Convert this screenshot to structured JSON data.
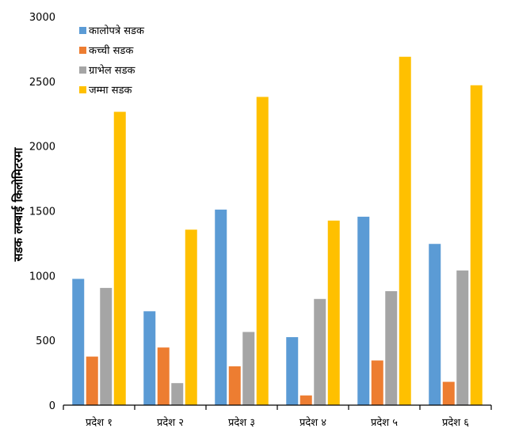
{
  "chart_data": {
    "type": "bar",
    "categories": [
      "प्रदेश १",
      "प्रदेश २",
      "प्रदेश ३",
      "प्रदेश ४",
      "प्रदेश ५",
      "प्रदेश ६"
    ],
    "series": [
      {
        "name": "कालोपत्रे सडक",
        "color": "#5B9BD5",
        "values": [
          975,
          725,
          1510,
          525,
          1455,
          1245
        ]
      },
      {
        "name": "कच्ची सडक",
        "color": "#ED7D31",
        "values": [
          375,
          445,
          300,
          75,
          345,
          180
        ]
      },
      {
        "name": "ग्राभेल सडक",
        "color": "#A5A5A5",
        "values": [
          905,
          170,
          565,
          820,
          880,
          1040
        ]
      },
      {
        "name": "जम्मा सडक",
        "color": "#FFC000",
        "values": [
          2265,
          1355,
          2380,
          1425,
          2690,
          2470
        ]
      }
    ],
    "title": "",
    "xlabel": "",
    "ylabel": "सडक लम्बाई किलोमिटरमा",
    "ylim": [
      0,
      3000
    ],
    "yticks": [
      0,
      500,
      1000,
      1500,
      2000,
      2500,
      3000
    ],
    "grid": false,
    "legend_position": "top-left"
  }
}
